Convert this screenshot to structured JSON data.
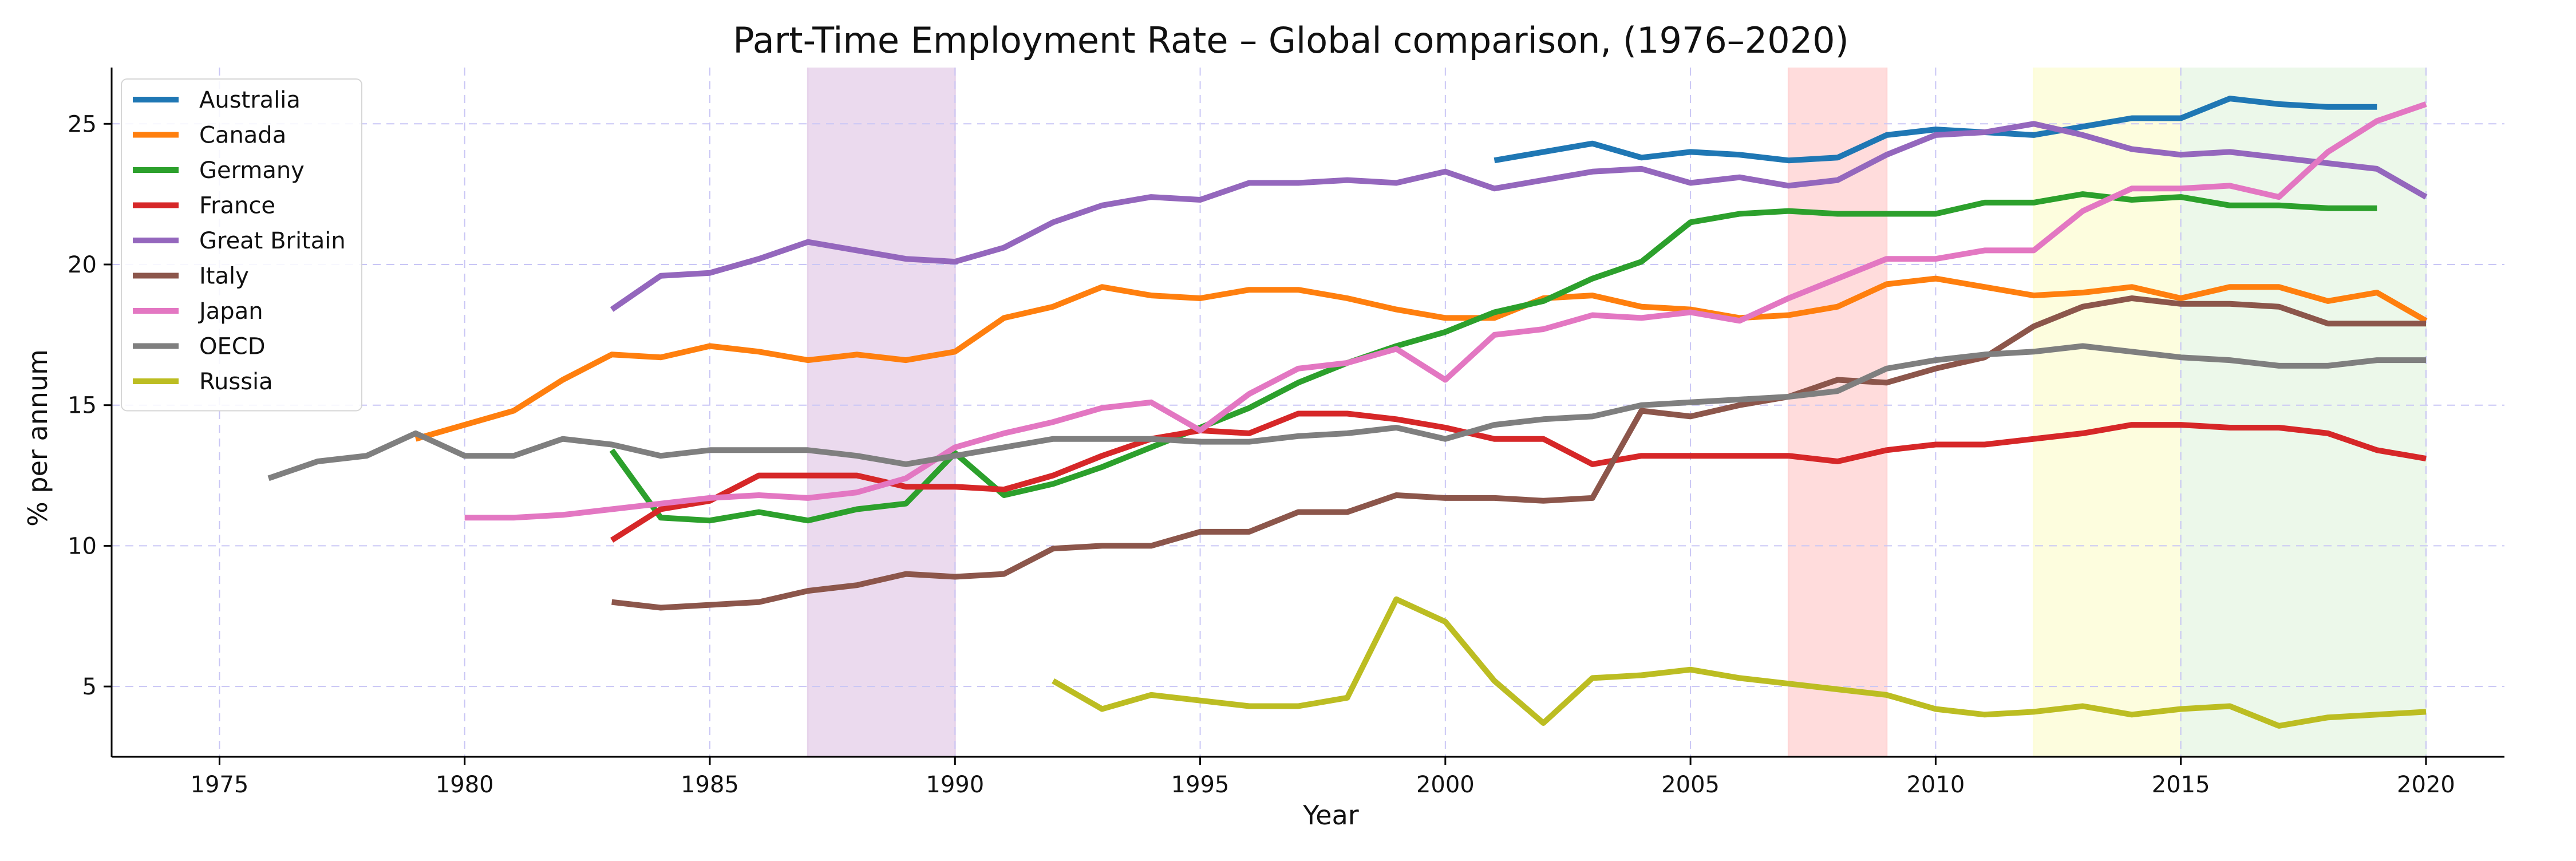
{
  "chart_data": {
    "type": "line",
    "title": "Part-Time Employment Rate – Global comparison, (1976–2020)",
    "xlabel": "Year",
    "ylabel": "% per annum",
    "xlim": [
      1972.8,
      2021.6
    ],
    "ylim": [
      2.5,
      27.0
    ],
    "x_ticks": [
      1975,
      1980,
      1985,
      1990,
      1995,
      2000,
      2005,
      2010,
      2015,
      2020
    ],
    "y_ticks": [
      5,
      10,
      15,
      20,
      25
    ],
    "grid": true,
    "legend_position": "top-left",
    "shaded_periods": [
      {
        "start": 1987,
        "end": 1990,
        "color": "#e7d4eb"
      },
      {
        "start": 2007,
        "end": 2009,
        "color": "#ffd6d6"
      },
      {
        "start": 2012,
        "end": 2015,
        "color": "#fdfdd8"
      },
      {
        "start": 2015,
        "end": 2020,
        "color": "#e9f7e6"
      }
    ],
    "series": [
      {
        "name": "Australia",
        "color": "#1f77b4",
        "x": [
          2001,
          2002,
          2003,
          2004,
          2005,
          2006,
          2007,
          2008,
          2009,
          2010,
          2011,
          2012,
          2013,
          2014,
          2015,
          2016,
          2017,
          2018,
          2019
        ],
        "values": [
          23.7,
          24.0,
          24.3,
          23.8,
          24.0,
          23.9,
          23.7,
          23.8,
          24.6,
          24.8,
          24.7,
          24.6,
          24.9,
          25.2,
          25.2,
          25.9,
          25.7,
          25.6,
          25.6
        ]
      },
      {
        "name": "Canada",
        "color": "#ff7f0e",
        "x": [
          1979,
          1980,
          1981,
          1982,
          1983,
          1984,
          1985,
          1986,
          1987,
          1988,
          1989,
          1990,
          1991,
          1992,
          1993,
          1994,
          1995,
          1996,
          1997,
          1998,
          1999,
          2000,
          2001,
          2002,
          2003,
          2004,
          2005,
          2006,
          2007,
          2008,
          2009,
          2010,
          2011,
          2012,
          2013,
          2014,
          2015,
          2016,
          2017,
          2018,
          2019,
          2020
        ],
        "values": [
          13.8,
          14.3,
          14.8,
          15.9,
          16.8,
          16.7,
          17.1,
          16.9,
          16.6,
          16.8,
          16.6,
          16.9,
          18.1,
          18.5,
          19.2,
          18.9,
          18.8,
          19.1,
          19.1,
          18.8,
          18.4,
          18.1,
          18.1,
          18.8,
          18.9,
          18.5,
          18.4,
          18.1,
          18.2,
          18.5,
          19.3,
          19.5,
          19.2,
          18.9,
          19.0,
          19.2,
          18.8,
          19.2,
          19.2,
          18.7,
          19.0,
          18.0
        ]
      },
      {
        "name": "Germany",
        "color": "#2ca02c",
        "x": [
          1983,
          1984,
          1985,
          1986,
          1987,
          1988,
          1989,
          1990,
          1991,
          1992,
          1993,
          1994,
          1995,
          1996,
          1997,
          1998,
          1999,
          2000,
          2001,
          2002,
          2003,
          2004,
          2005,
          2006,
          2007,
          2008,
          2009,
          2010,
          2011,
          2012,
          2013,
          2014,
          2015,
          2016,
          2017,
          2018,
          2019
        ],
        "values": [
          13.4,
          11.0,
          10.9,
          11.2,
          10.9,
          11.3,
          11.5,
          13.3,
          11.8,
          12.2,
          12.8,
          13.5,
          14.2,
          14.9,
          15.8,
          16.5,
          17.1,
          17.6,
          18.3,
          18.7,
          19.5,
          20.1,
          21.5,
          21.8,
          21.9,
          21.8,
          21.8,
          21.8,
          22.2,
          22.2,
          22.5,
          22.3,
          22.4,
          22.1,
          22.1,
          22.0,
          22.0
        ]
      },
      {
        "name": "France",
        "color": "#d62728",
        "x": [
          1983,
          1984,
          1985,
          1986,
          1987,
          1988,
          1989,
          1990,
          1991,
          1992,
          1993,
          1994,
          1995,
          1996,
          1997,
          1998,
          1999,
          2000,
          2001,
          2002,
          2003,
          2004,
          2005,
          2006,
          2007,
          2008,
          2009,
          2010,
          2011,
          2012,
          2013,
          2014,
          2015,
          2016,
          2017,
          2018,
          2019,
          2020
        ],
        "values": [
          10.2,
          11.3,
          11.6,
          12.5,
          12.5,
          12.5,
          12.1,
          12.1,
          12.0,
          12.5,
          13.2,
          13.8,
          14.1,
          14.0,
          14.7,
          14.7,
          14.5,
          14.2,
          13.8,
          13.8,
          12.9,
          13.2,
          13.2,
          13.2,
          13.2,
          13.0,
          13.4,
          13.6,
          13.6,
          13.8,
          14.0,
          14.3,
          14.3,
          14.2,
          14.2,
          14.0,
          13.4,
          13.1
        ]
      },
      {
        "name": "Great Britain",
        "color": "#9467bd",
        "x": [
          1983,
          1984,
          1985,
          1986,
          1987,
          1988,
          1989,
          1990,
          1991,
          1992,
          1993,
          1994,
          1995,
          1996,
          1997,
          1998,
          1999,
          2000,
          2001,
          2002,
          2003,
          2004,
          2005,
          2006,
          2007,
          2008,
          2009,
          2010,
          2011,
          2012,
          2013,
          2014,
          2015,
          2016,
          2017,
          2018,
          2019,
          2020
        ],
        "values": [
          18.4,
          19.6,
          19.7,
          20.2,
          20.8,
          20.5,
          20.2,
          20.1,
          20.6,
          21.5,
          22.1,
          22.4,
          22.3,
          22.9,
          22.9,
          23.0,
          22.9,
          23.3,
          22.7,
          23.0,
          23.3,
          23.4,
          22.9,
          23.1,
          22.8,
          23.0,
          23.9,
          24.6,
          24.7,
          25.0,
          24.6,
          24.1,
          23.9,
          24.0,
          23.8,
          23.6,
          23.4,
          22.4
        ]
      },
      {
        "name": "Italy",
        "color": "#8c564b",
        "x": [
          1983,
          1984,
          1985,
          1986,
          1987,
          1988,
          1989,
          1990,
          1991,
          1992,
          1993,
          1994,
          1995,
          1996,
          1997,
          1998,
          1999,
          2000,
          2001,
          2002,
          2003,
          2004,
          2005,
          2006,
          2007,
          2008,
          2009,
          2010,
          2011,
          2012,
          2013,
          2014,
          2015,
          2016,
          2017,
          2018,
          2019,
          2020
        ],
        "values": [
          8.0,
          7.8,
          7.9,
          8.0,
          8.4,
          8.6,
          9.0,
          8.9,
          9.0,
          9.9,
          10.0,
          10.0,
          10.5,
          10.5,
          11.2,
          11.2,
          11.8,
          11.7,
          11.7,
          11.6,
          11.7,
          14.8,
          14.6,
          15.0,
          15.3,
          15.9,
          15.8,
          16.3,
          16.7,
          17.8,
          18.5,
          18.8,
          18.6,
          18.6,
          18.5,
          17.9,
          17.9,
          17.9
        ]
      },
      {
        "name": "Japan",
        "color": "#e377c2",
        "x": [
          1980,
          1981,
          1982,
          1983,
          1984,
          1985,
          1986,
          1987,
          1988,
          1989,
          1990,
          1991,
          1992,
          1993,
          1994,
          1995,
          1996,
          1997,
          1998,
          1999,
          2000,
          2001,
          2002,
          2003,
          2004,
          2005,
          2006,
          2007,
          2008,
          2009,
          2010,
          2011,
          2012,
          2013,
          2014,
          2015,
          2016,
          2017,
          2018,
          2019,
          2020
        ],
        "values": [
          11.0,
          11.0,
          11.1,
          11.3,
          11.5,
          11.7,
          11.8,
          11.7,
          11.9,
          12.4,
          13.5,
          14.0,
          14.4,
          14.9,
          15.1,
          14.1,
          15.4,
          16.3,
          16.5,
          17.0,
          15.9,
          17.5,
          17.7,
          18.2,
          18.1,
          18.3,
          18.0,
          18.8,
          19.5,
          20.2,
          20.2,
          20.5,
          20.5,
          21.9,
          22.7,
          22.7,
          22.8,
          22.4,
          24.0,
          25.1,
          25.7
        ]
      },
      {
        "name": "OECD",
        "color": "#7f7f7f",
        "x": [
          1976,
          1977,
          1978,
          1979,
          1980,
          1981,
          1982,
          1983,
          1984,
          1985,
          1986,
          1987,
          1988,
          1989,
          1990,
          1991,
          1992,
          1993,
          1994,
          1995,
          1996,
          1997,
          1998,
          1999,
          2000,
          2001,
          2002,
          2003,
          2004,
          2005,
          2006,
          2007,
          2008,
          2009,
          2010,
          2011,
          2012,
          2013,
          2014,
          2015,
          2016,
          2017,
          2018,
          2019,
          2020
        ],
        "values": [
          12.4,
          13.0,
          13.2,
          14.0,
          13.2,
          13.2,
          13.8,
          13.6,
          13.2,
          13.4,
          13.4,
          13.4,
          13.2,
          12.9,
          13.2,
          13.5,
          13.8,
          13.8,
          13.8,
          13.7,
          13.7,
          13.9,
          14.0,
          14.2,
          13.8,
          14.3,
          14.5,
          14.6,
          15.0,
          15.1,
          15.2,
          15.3,
          15.5,
          16.3,
          16.6,
          16.8,
          16.9,
          17.1,
          16.9,
          16.7,
          16.6,
          16.4,
          16.4,
          16.6,
          16.6
        ]
      },
      {
        "name": "Russia",
        "color": "#bcbd22",
        "x": [
          1992,
          1993,
          1994,
          1995,
          1996,
          1997,
          1998,
          1999,
          2000,
          2001,
          2002,
          2003,
          2004,
          2005,
          2006,
          2007,
          2008,
          2009,
          2010,
          2011,
          2012,
          2013,
          2014,
          2015,
          2016,
          2017,
          2018,
          2019,
          2020
        ],
        "values": [
          5.2,
          4.2,
          4.7,
          4.5,
          4.3,
          4.3,
          4.6,
          8.1,
          7.3,
          5.2,
          3.7,
          5.3,
          5.4,
          5.6,
          5.3,
          5.1,
          4.9,
          4.7,
          4.2,
          4.0,
          4.1,
          4.3,
          4.0,
          4.2,
          4.3,
          3.6,
          3.9,
          4.0,
          4.1
        ]
      }
    ]
  }
}
